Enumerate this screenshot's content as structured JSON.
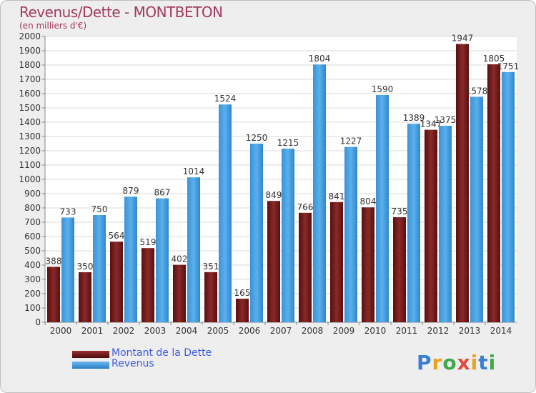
{
  "header": {
    "title": "Revenus/Dette - MONTBETON",
    "subtitle": "(en milliers d'€)"
  },
  "chart_data": {
    "type": "bar",
    "categories": [
      "2000",
      "2001",
      "2002",
      "2003",
      "2004",
      "2005",
      "2006",
      "2007",
      "2008",
      "2009",
      "2010",
      "2011",
      "2012",
      "2013",
      "2014"
    ],
    "series": [
      {
        "name": "Montant de la Dette",
        "color": "#7a1f1f",
        "values": [
          388,
          350,
          564,
          519,
          402,
          351,
          165,
          849,
          766,
          841,
          804,
          735,
          1347,
          1947,
          1805
        ]
      },
      {
        "name": "Revenus",
        "color": "#3a9ee0",
        "values": [
          733,
          750,
          879,
          867,
          1014,
          1524,
          1250,
          1215,
          1804,
          1227,
          1590,
          1389,
          1375,
          1578,
          1751
        ]
      }
    ],
    "ylim": [
      0,
      2000
    ],
    "ytick_step": 100,
    "grid": true,
    "legend": "bottom-left"
  },
  "logo": {
    "text": "Proxiti"
  }
}
